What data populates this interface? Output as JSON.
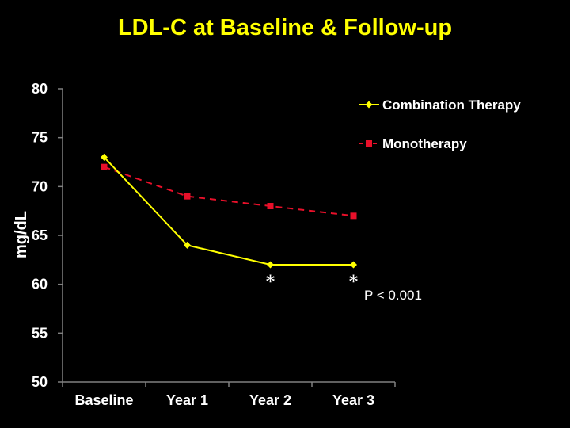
{
  "chart_data": {
    "type": "line",
    "title": "LDL-C at Baseline & Follow-up",
    "ylabel": "mg/dL",
    "xlabel": "",
    "categories": [
      "Baseline",
      "Year 1",
      "Year 2",
      "Year 3"
    ],
    "ylim": [
      50,
      80
    ],
    "yticks": [
      50,
      55,
      60,
      65,
      70,
      75,
      80
    ],
    "grid": false,
    "legend_position": "top-right",
    "series": [
      {
        "name": "Combination Therapy",
        "values": [
          73,
          64,
          62,
          62
        ],
        "color": "#FFFF00",
        "line_style": "solid",
        "marker": "diamond"
      },
      {
        "name": "Monotherapy",
        "values": [
          72,
          69,
          68,
          67
        ],
        "color": "#E8102A",
        "line_style": "dashed",
        "marker": "square"
      }
    ],
    "annotations": {
      "significance_marks": [
        {
          "category": "Year 2",
          "text": "*"
        },
        {
          "category": "Year 3",
          "text": "*"
        }
      ],
      "p_value": "P < 0.001"
    },
    "colors": {
      "background": "#000000",
      "text": "#FFFFFF",
      "title": "#FFFF00",
      "axis": "#808080"
    }
  }
}
